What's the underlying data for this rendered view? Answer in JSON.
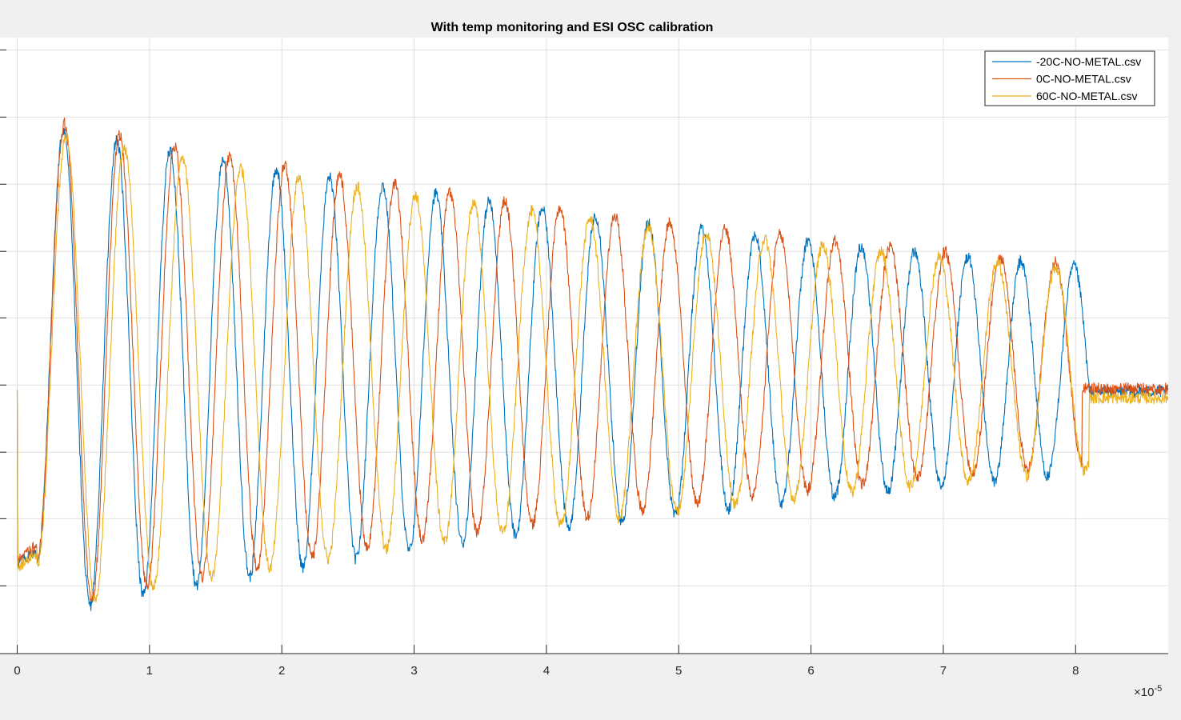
{
  "window": {
    "background": "#f0f0f0"
  },
  "chart_data": {
    "type": "line",
    "title": "With temp monitoring and ESI OSC calibration",
    "xlabel": "",
    "ylabel": "",
    "x_exponent_label": "×10",
    "x_exponent_power": "-5",
    "xlim": [
      -0.13,
      8.7
    ],
    "ylim": [
      0.0,
      1.0
    ],
    "xticks": [
      0,
      1,
      2,
      3,
      4,
      5,
      6,
      7,
      8
    ],
    "xtick_labels": [
      "0",
      "1",
      "2",
      "3",
      "4",
      "5",
      "6",
      "7",
      "8"
    ],
    "yticks": [
      0.11,
      0.219,
      0.327,
      0.436,
      0.545,
      0.653,
      0.762,
      0.871,
      0.98
    ],
    "grid": true,
    "legend_position": "top-right",
    "series": [
      {
        "name": "-20C-NO-METAL.csv",
        "color": "#0072BD",
        "start_level": 0.428,
        "baseline": 0.145,
        "onset": 0.15,
        "period": 0.402,
        "pre_slope": 0.12,
        "offset": 0.46,
        "amp0": 0.4,
        "decay": 0.11,
        "stop": 8.1,
        "final_level": 0.425,
        "noise": 0.01
      },
      {
        "name": "0C-NO-METAL.csv",
        "color": "#D95319",
        "start_level": 0.428,
        "baseline": 0.152,
        "onset": 0.15,
        "period": 0.416,
        "pre_slope": 0.12,
        "offset": 0.47,
        "amp0": 0.4,
        "decay": 0.115,
        "stop": 8.05,
        "final_level": 0.43,
        "noise": 0.01
      },
      {
        "name": "60C-NO-METAL.csv",
        "color": "#EDB120",
        "start_level": 0.428,
        "baseline": 0.14,
        "onset": 0.15,
        "period": 0.44,
        "pre_slope": 0.12,
        "offset": 0.46,
        "amp0": 0.39,
        "decay": 0.11,
        "stop": 8.1,
        "final_level": 0.415,
        "noise": 0.01
      }
    ]
  }
}
